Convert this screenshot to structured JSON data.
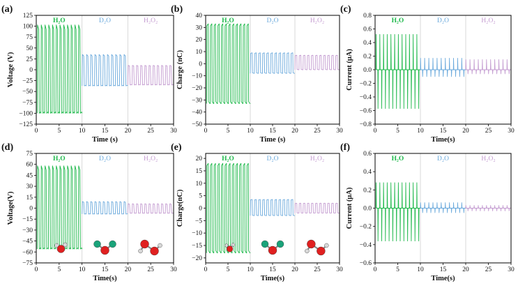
{
  "figure": {
    "layout": "2x3 grid of triboelectric output panels"
  },
  "colors": {
    "H2O": "#1db84a",
    "D2O": "#6aa9dc",
    "H2O2": "#c39bd0"
  },
  "molecule_colors": {
    "oxygen": "#e02020",
    "hydrogen": "#d8d8d8",
    "deuterium": "#1aa37a"
  },
  "chart_data": [
    {
      "panel": "(a)",
      "type": "line",
      "title": "",
      "xlabel": "Time (s)",
      "ylabel": "Voltage (V)",
      "xlim": [
        0,
        30
      ],
      "ylim": [
        -125,
        125
      ],
      "xticks": [
        0,
        5,
        10,
        15,
        20,
        25,
        30
      ],
      "yticks": [
        -125,
        -100,
        -75,
        -50,
        -25,
        0,
        25,
        50,
        75,
        100,
        125
      ],
      "regions": [
        {
          "label": "H₂O",
          "range": [
            0,
            10
          ]
        },
        {
          "label": "D₂O",
          "range": [
            10,
            20
          ]
        },
        {
          "label": "H₂O₂",
          "range": [
            20,
            30
          ]
        }
      ],
      "series": [
        {
          "name": "H2O",
          "x_range": [
            0.2,
            10
          ],
          "cycles": 12,
          "high": 103,
          "low": -100
        },
        {
          "name": "D2O",
          "x_range": [
            10,
            20
          ],
          "cycles": 11,
          "high": 35,
          "low": -37
        },
        {
          "name": "H2O2",
          "x_range": [
            20,
            30
          ],
          "cycles": 11,
          "high": 10,
          "low": -35
        }
      ]
    },
    {
      "panel": "(b)",
      "type": "line",
      "title": "",
      "xlabel": "Time (s)",
      "ylabel": "Charge (nC)",
      "xlim": [
        0,
        30
      ],
      "ylim": [
        -50,
        40
      ],
      "xticks": [
        0,
        5,
        10,
        15,
        20,
        25,
        30
      ],
      "yticks": [
        -50,
        -40,
        -30,
        -20,
        -10,
        0,
        10,
        20,
        30,
        40
      ],
      "regions": [
        {
          "label": "H₂O",
          "range": [
            0,
            10
          ]
        },
        {
          "label": "D₂O",
          "range": [
            10,
            20
          ]
        },
        {
          "label": "H₂O₂",
          "range": [
            20,
            30
          ]
        }
      ],
      "series": [
        {
          "name": "H2O",
          "x_range": [
            0.2,
            10
          ],
          "cycles": 12,
          "high": 33,
          "low": -33
        },
        {
          "name": "D2O",
          "x_range": [
            10,
            20
          ],
          "cycles": 11,
          "high": 9,
          "low": -8
        },
        {
          "name": "H2O2",
          "x_range": [
            20,
            30
          ],
          "cycles": 11,
          "high": 7,
          "low": -5
        }
      ]
    },
    {
      "panel": "(c)",
      "type": "line",
      "title": "",
      "xlabel": "Time(s)",
      "ylabel": "Current (μA)",
      "xlim": [
        0,
        30
      ],
      "ylim": [
        -0.8,
        0.8
      ],
      "xticks": [
        0,
        5,
        10,
        15,
        20,
        25,
        30
      ],
      "yticks": [
        -0.8,
        -0.6,
        -0.4,
        -0.2,
        0.0,
        0.2,
        0.4,
        0.6,
        0.8
      ],
      "regions": [
        {
          "label": "H₂O",
          "range": [
            0,
            10
          ]
        },
        {
          "label": "D₂O",
          "range": [
            10,
            20
          ]
        },
        {
          "label": "H₂O₂",
          "range": [
            20,
            30
          ]
        }
      ],
      "series": [
        {
          "name": "H2O",
          "x_range": [
            0.2,
            10
          ],
          "cycles": 12,
          "high": 0.52,
          "low": -0.57
        },
        {
          "name": "D2O",
          "x_range": [
            10,
            20
          ],
          "cycles": 11,
          "high": 0.17,
          "low": -0.1
        },
        {
          "name": "H2O2",
          "x_range": [
            20,
            30
          ],
          "cycles": 11,
          "high": 0.15,
          "low": -0.06
        }
      ]
    },
    {
      "panel": "(d)",
      "type": "line",
      "title": "",
      "xlabel": "Time(s)",
      "ylabel": "Voltage(V)",
      "xlim": [
        0,
        30
      ],
      "ylim": [
        -75,
        75
      ],
      "xticks": [
        0,
        5,
        10,
        15,
        20,
        25,
        30
      ],
      "yticks": [
        -75,
        -60,
        -45,
        -30,
        -15,
        0,
        15,
        30,
        45,
        60,
        75
      ],
      "regions": [
        {
          "label": "H₂O",
          "range": [
            0,
            10
          ]
        },
        {
          "label": "D₂O",
          "range": [
            10,
            20
          ]
        },
        {
          "label": "H₂O₂",
          "range": [
            20,
            30
          ]
        }
      ],
      "series": [
        {
          "name": "H2O",
          "x_range": [
            0.2,
            10
          ],
          "cycles": 12,
          "high": 58,
          "low": -56
        },
        {
          "name": "D2O",
          "x_range": [
            10,
            20
          ],
          "cycles": 11,
          "high": 9,
          "low": -8
        },
        {
          "name": "H2O2",
          "x_range": [
            20,
            30
          ],
          "cycles": 11,
          "high": 6,
          "low": -7
        }
      ]
    },
    {
      "panel": "(e)",
      "type": "line",
      "title": "",
      "xlabel": "Time(s)",
      "ylabel": "Charge(nC)",
      "xlim": [
        0,
        30
      ],
      "ylim": [
        -22,
        22
      ],
      "xticks": [
        0,
        5,
        10,
        15,
        20,
        25,
        30
      ],
      "yticks": [
        -20,
        -15,
        -10,
        -5,
        0,
        5,
        10,
        15,
        20
      ],
      "regions": [
        {
          "label": "H₂O",
          "range": [
            0,
            10
          ]
        },
        {
          "label": "D₂O",
          "range": [
            10,
            20
          ]
        },
        {
          "label": "H₂O₂",
          "range": [
            20,
            30
          ]
        }
      ],
      "series": [
        {
          "name": "H2O",
          "x_range": [
            0.2,
            10
          ],
          "cycles": 12,
          "high": 18,
          "low": -18
        },
        {
          "name": "D2O",
          "x_range": [
            10,
            20
          ],
          "cycles": 11,
          "high": 3.5,
          "low": -3
        },
        {
          "name": "H2O2",
          "x_range": [
            20,
            30
          ],
          "cycles": 11,
          "high": 2,
          "low": -2
        }
      ]
    },
    {
      "panel": "(f)",
      "type": "line",
      "title": "",
      "xlabel": "Time(s)",
      "ylabel": "Current (μA)",
      "xlim": [
        0,
        30
      ],
      "ylim": [
        -0.6,
        0.6
      ],
      "xticks": [
        0,
        5,
        10,
        15,
        20,
        25,
        30
      ],
      "yticks": [
        -0.6,
        -0.4,
        -0.2,
        0.0,
        0.2,
        0.4,
        0.6
      ],
      "regions": [
        {
          "label": "H₂O",
          "range": [
            0,
            10
          ]
        },
        {
          "label": "D₂O",
          "range": [
            10,
            20
          ]
        },
        {
          "label": "H₂O₂",
          "range": [
            20,
            30
          ]
        }
      ],
      "series": [
        {
          "name": "H2O",
          "x_range": [
            0.2,
            10
          ],
          "cycles": 12,
          "high": 0.28,
          "low": -0.36
        },
        {
          "name": "D2O",
          "x_range": [
            10,
            20
          ],
          "cycles": 11,
          "high": 0.06,
          "low": -0.05
        },
        {
          "name": "H2O2",
          "x_range": [
            20,
            30
          ],
          "cycles": 11,
          "high": 0.03,
          "low": -0.03
        }
      ]
    }
  ]
}
